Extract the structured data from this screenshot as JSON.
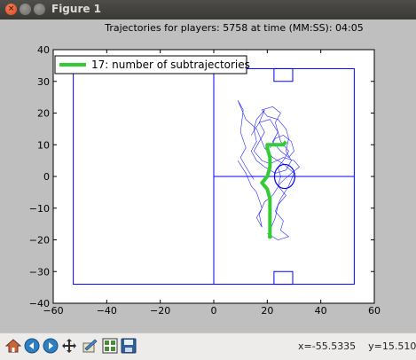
{
  "window": {
    "title": "Figure 1"
  },
  "chart_data": {
    "type": "line",
    "title": "Trajectories for players:  5758 at time (MM:SS): 04:05",
    "xlim": [
      -60,
      60
    ],
    "ylim": [
      -40,
      40
    ],
    "xticks": [
      "−60",
      "−40",
      "−20",
      "0",
      "20",
      "40",
      "60"
    ],
    "yticks": [
      "40",
      "30",
      "20",
      "10",
      "0",
      "−10",
      "−20",
      "−30",
      "−40"
    ],
    "grid": false,
    "legend": {
      "placement": "top-left",
      "label": "17: number of subtrajectories"
    },
    "colors": {
      "field": "#0000ff",
      "traj": "#0000ff",
      "main": "#33cc33",
      "axes_bg": "#ffffff",
      "figure_bg": "#bfbfbf"
    },
    "pitch": {
      "outline": [
        [
          -52.5,
          -34
        ],
        [
          52.5,
          34
        ]
      ],
      "halfway_x": 0,
      "center_y": 0,
      "goal_boxes": [
        {
          "x": [
            22.5,
            29.5
          ],
          "y": [
            30,
            34
          ]
        },
        {
          "x": [
            22.5,
            29.5
          ],
          "y": [
            -34,
            -30
          ]
        }
      ],
      "circle": {
        "cx": 26.5,
        "cy": 0,
        "r": 3.8
      }
    },
    "main_series": {
      "name": "main trajectory",
      "points": [
        [
          21,
          -19
        ],
        [
          21,
          -15
        ],
        [
          21,
          -7
        ],
        [
          20,
          -4
        ],
        [
          18,
          -2
        ],
        [
          20,
          0
        ],
        [
          21,
          3
        ],
        [
          21,
          6
        ],
        [
          20,
          9
        ],
        [
          20,
          10
        ],
        [
          26,
          10
        ],
        [
          27,
          11
        ]
      ]
    },
    "subtrajectories": [
      [
        [
          20,
          -18
        ],
        [
          24,
          -20
        ],
        [
          28,
          -19
        ],
        [
          25,
          -17
        ],
        [
          26,
          -14
        ],
        [
          23,
          -11
        ],
        [
          25,
          -7
        ],
        [
          28,
          -3
        ],
        [
          30,
          1
        ],
        [
          26,
          4
        ],
        [
          22,
          6
        ],
        [
          19,
          9
        ],
        [
          16,
          15
        ],
        [
          12,
          18
        ],
        [
          10,
          22
        ],
        [
          9,
          24
        ],
        [
          11,
          21
        ],
        [
          10,
          14
        ],
        [
          12,
          9
        ],
        [
          10,
          6
        ],
        [
          12,
          3
        ],
        [
          15,
          -1
        ]
      ],
      [
        [
          14,
          13
        ],
        [
          17,
          17
        ],
        [
          19,
          21
        ],
        [
          16,
          18
        ],
        [
          15,
          15
        ],
        [
          16,
          11
        ],
        [
          14,
          8
        ],
        [
          16,
          5
        ],
        [
          19,
          3
        ],
        [
          23,
          1
        ],
        [
          27,
          2
        ],
        [
          29,
          5
        ],
        [
          27,
          8
        ],
        [
          28,
          12
        ],
        [
          27,
          15
        ],
        [
          24,
          18
        ],
        [
          20,
          19
        ],
        [
          18,
          21
        ],
        [
          22,
          22
        ],
        [
          25,
          20
        ],
        [
          23,
          17
        ],
        [
          24,
          14
        ],
        [
          25,
          11
        ],
        [
          28,
          8
        ],
        [
          26,
          5
        ],
        [
          24,
          3
        ],
        [
          25,
          0
        ],
        [
          24,
          -3
        ],
        [
          27,
          -6
        ],
        [
          24,
          -9
        ],
        [
          23,
          -13
        ],
        [
          21,
          -17
        ]
      ],
      [
        [
          9,
          5
        ],
        [
          12,
          1
        ],
        [
          14,
          -3
        ],
        [
          16,
          -5
        ],
        [
          18,
          -10
        ],
        [
          16,
          -13
        ],
        [
          18,
          -16
        ],
        [
          17,
          -12
        ],
        [
          19,
          -8
        ],
        [
          22,
          -6
        ],
        [
          25,
          -2
        ],
        [
          29,
          1
        ],
        [
          32,
          3
        ],
        [
          30,
          5
        ],
        [
          26,
          6
        ],
        [
          21,
          4
        ],
        [
          18,
          5
        ],
        [
          15,
          8
        ],
        [
          17,
          11
        ],
        [
          19,
          14
        ],
        [
          17,
          17
        ],
        [
          21,
          18
        ],
        [
          24,
          14
        ],
        [
          22,
          11
        ],
        [
          25,
          8
        ],
        [
          28,
          6
        ],
        [
          30,
          8
        ],
        [
          29,
          11
        ],
        [
          26,
          13
        ],
        [
          23,
          12
        ],
        [
          21,
          9
        ]
      ]
    ]
  },
  "toolbar": {
    "icons": [
      "home-icon",
      "back-icon",
      "forward-icon",
      "pan-icon",
      "zoom-icon",
      "subplots-icon",
      "save-icon"
    ],
    "coords": "x=-55.5335    y=15.5102"
  }
}
